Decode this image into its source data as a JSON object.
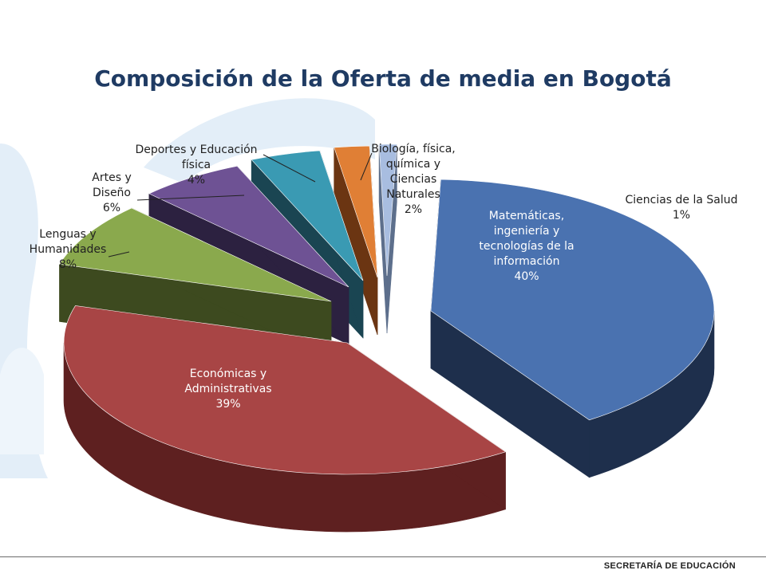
{
  "title": "Composición de la Oferta de media en Bogotá",
  "footer": "SECRETARÍA DE EDUCACIÓN",
  "chart_data": {
    "type": "pie",
    "style": "3d-exploded",
    "slices": [
      {
        "name": "Matemáticas, ingeniería y tecnologías de la información",
        "value": 40,
        "label_lines": [
          "Matemáticas,",
          "ingeniería y",
          "tecnologías de la",
          "información",
          "40%"
        ],
        "color": "#4a72b0",
        "side": "#1e2f4c",
        "label_color": "#ffffff"
      },
      {
        "name": "Económicas y Administrativas",
        "value": 39,
        "label_lines": [
          "Económicas y",
          "Administrativas",
          "39%"
        ],
        "color": "#a84545",
        "side": "#5e2020",
        "label_color": "#ffffff"
      },
      {
        "name": "Lenguas y Humanidades",
        "value": 8,
        "label_lines": [
          "Lenguas y",
          "Humanidades",
          "8%"
        ],
        "color": "#8aa94d",
        "side": "#3d4a1f",
        "label_color": "#222222"
      },
      {
        "name": "Artes y Diseño",
        "value": 6,
        "label_lines": [
          "Artes y",
          "Diseño",
          "6%"
        ],
        "color": "#6e5294",
        "side": "#2c2140",
        "label_color": "#222222"
      },
      {
        "name": "Deportes y Educación física",
        "value": 4,
        "label_lines": [
          "Deportes y Educación",
          "física",
          "4%"
        ],
        "color": "#3a9ab3",
        "side": "#1a4552",
        "label_color": "#222222"
      },
      {
        "name": "Biología, física, química y Ciencias Naturales",
        "value": 2,
        "label_lines": [
          "Biología, física,",
          "química y",
          "Ciencias",
          "Naturales",
          "2%"
        ],
        "color": "#e07f35",
        "side": "#6b3512",
        "label_color": "#222222"
      },
      {
        "name": "Ciencias de la Salud",
        "value": 1,
        "label_lines": [
          "Ciencias de la Salud",
          "1%"
        ],
        "color": "#a8bde0",
        "side": "#5d6f8c",
        "label_color": "#222222"
      }
    ]
  }
}
